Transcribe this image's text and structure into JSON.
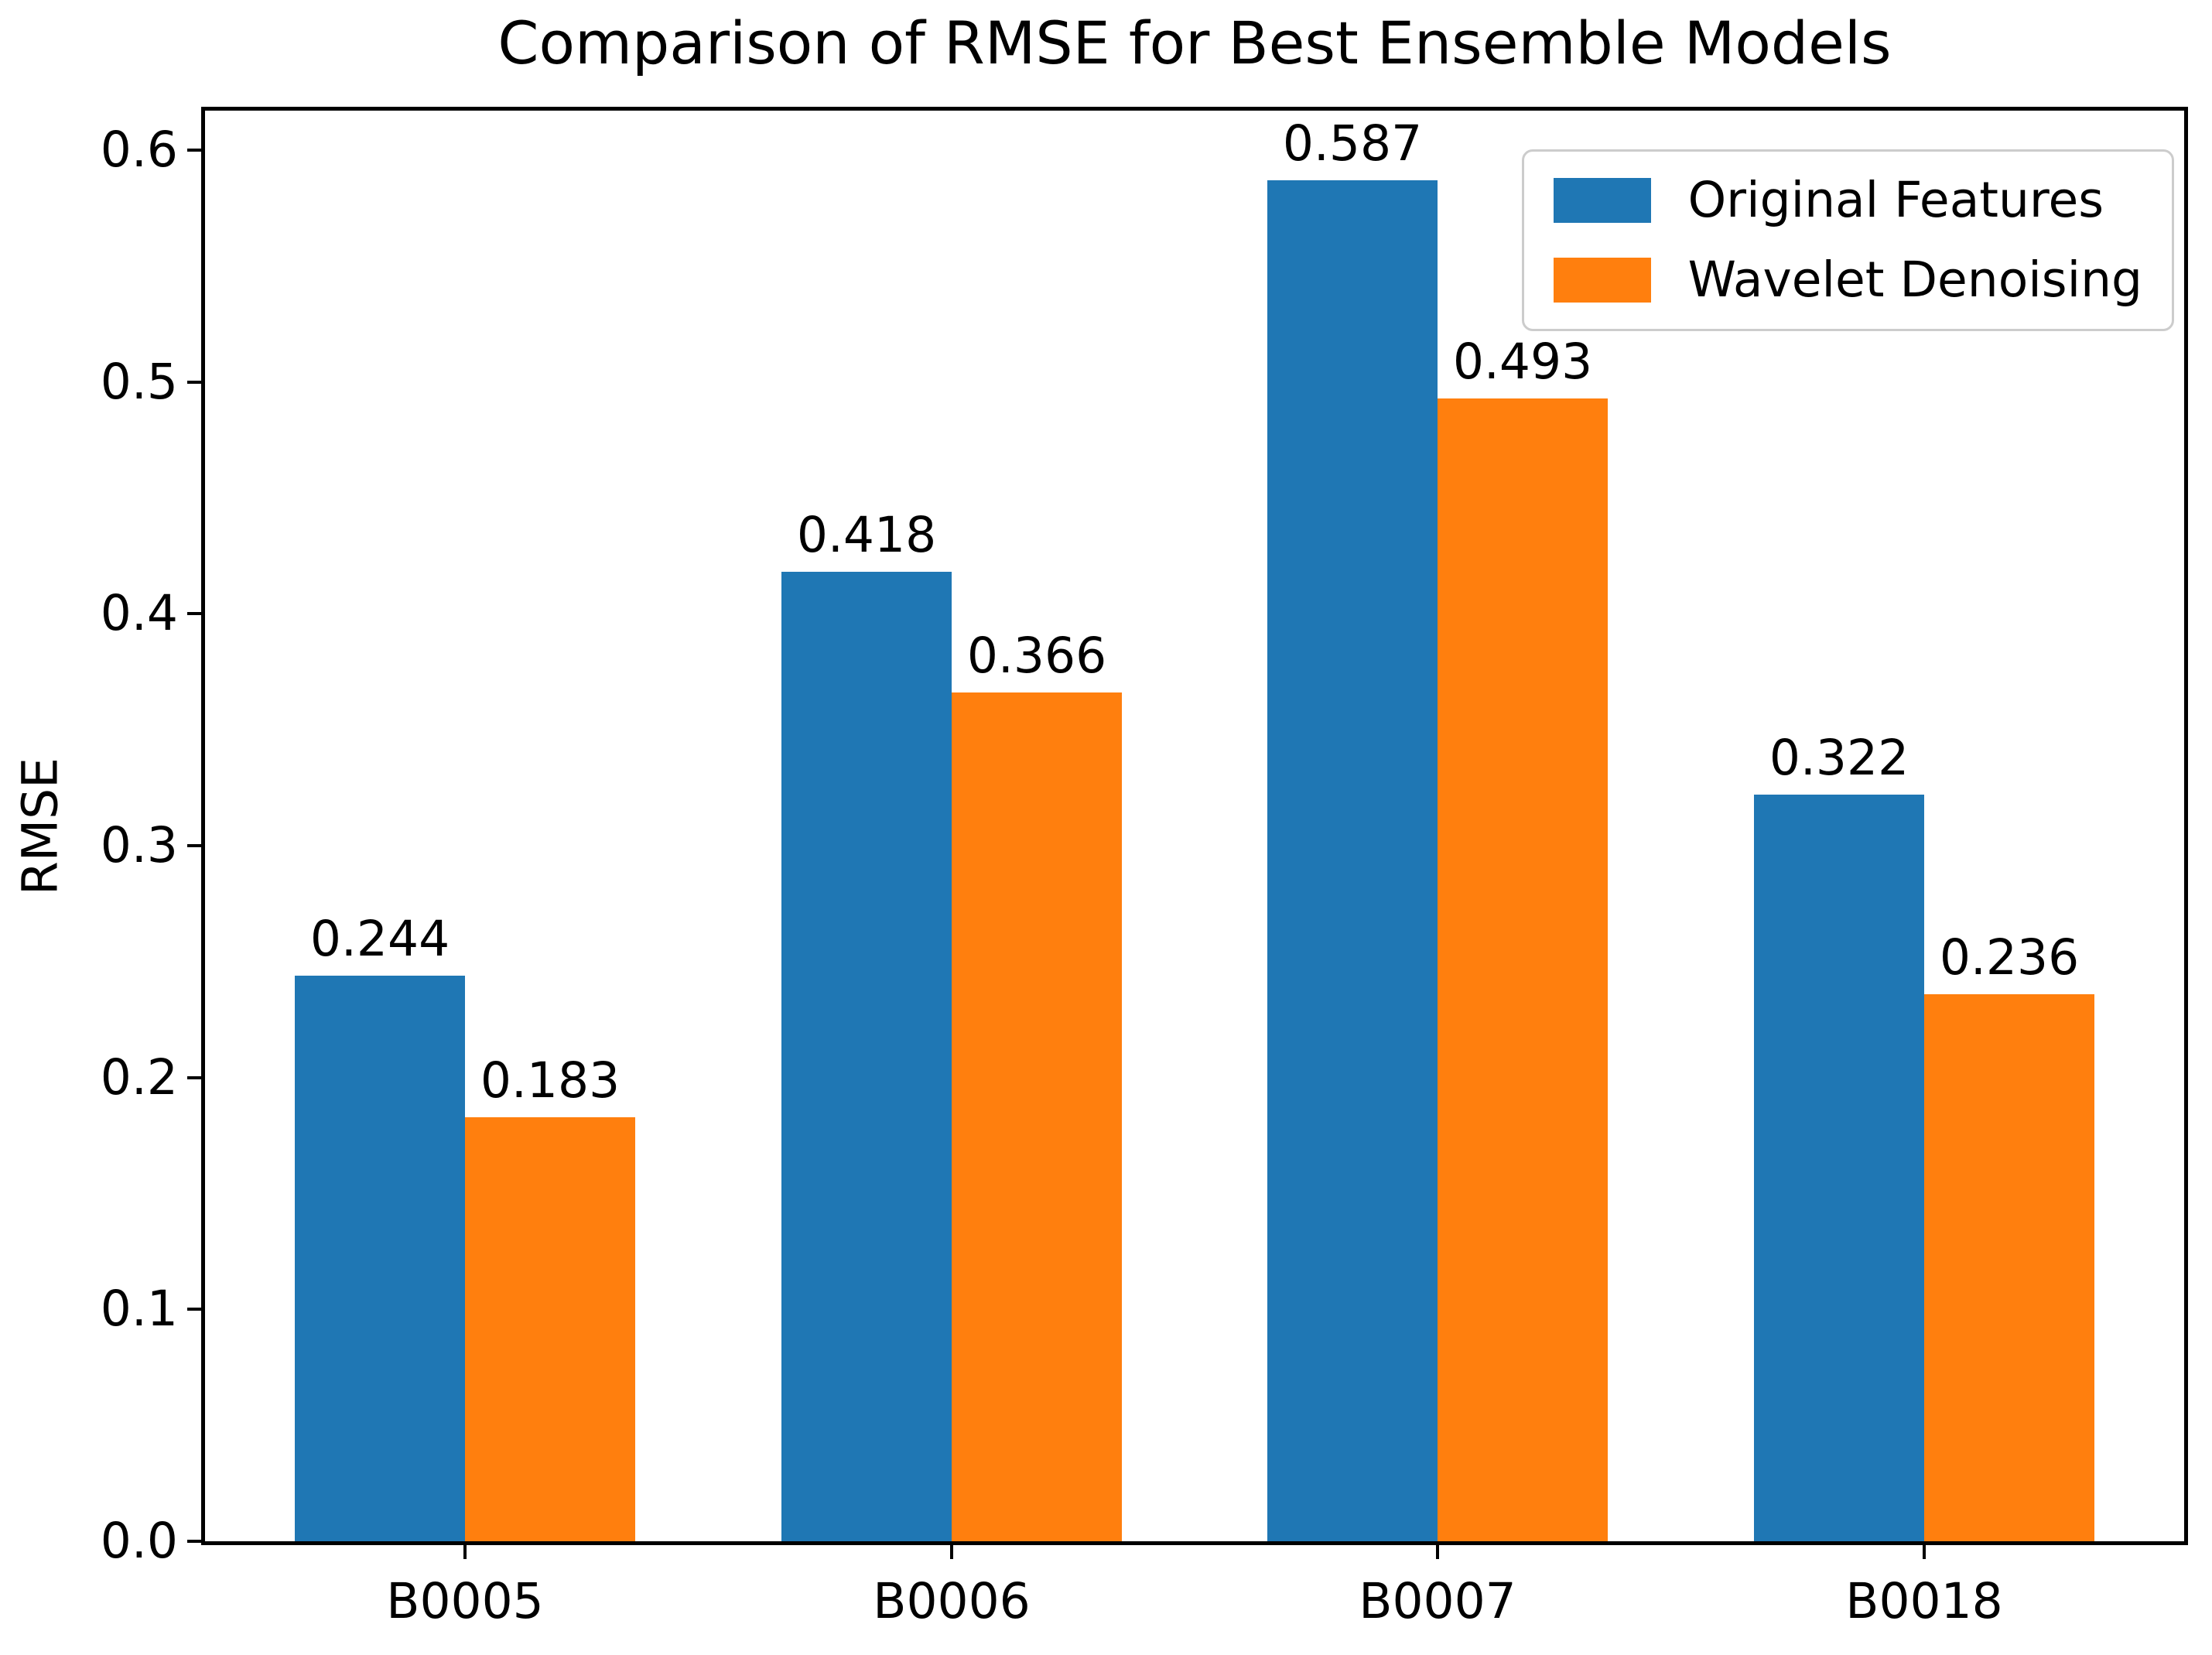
{
  "figure": {
    "background": "#ffffff"
  },
  "chart_data": {
    "type": "bar",
    "title": "Comparison of RMSE for Best Ensemble Models",
    "ylabel": "RMSE",
    "xlabel": "",
    "categories": [
      "B0005",
      "B0006",
      "B0007",
      "B0018"
    ],
    "series": [
      {
        "name": "Original Features",
        "color": "#1f77b4",
        "values": [
          0.244,
          0.418,
          0.587,
          0.322
        ],
        "value_labels": [
          "0.244",
          "0.418",
          "0.587",
          "0.322"
        ]
      },
      {
        "name": "Wavelet Denoising",
        "color": "#ff7f0e",
        "values": [
          0.183,
          0.366,
          0.493,
          0.236
        ],
        "value_labels": [
          "0.183",
          "0.366",
          "0.493",
          "0.236"
        ]
      }
    ],
    "yticks": [
      "0.0",
      "0.1",
      "0.2",
      "0.3",
      "0.4",
      "0.5",
      "0.6"
    ],
    "ylim": [
      0,
      0.617
    ],
    "xlim": [
      -0.535,
      3.535
    ],
    "bar_width_units": 0.35,
    "grid": false,
    "legend_position": "upper right",
    "value_labels_shown": true,
    "axis_color": "#000000",
    "text_color": "#000000"
  }
}
